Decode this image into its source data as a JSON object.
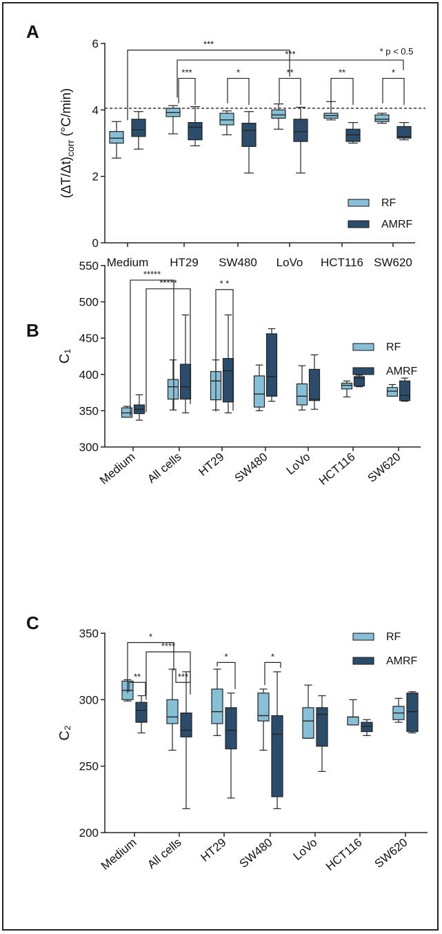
{
  "colors": {
    "rf": "#87bfd6",
    "amrf": "#2b4d6b",
    "axis": "#222222"
  },
  "chart_data": [
    {
      "panel": "A",
      "type": "box",
      "ylabel": "(ΔT/Δt)corr (°C/min)",
      "ylabel_main": "(ΔT/Δt)",
      "ylabel_sub": "corr",
      "ylabel_unit": " (°C/min)",
      "ylim": [
        0,
        6
      ],
      "yticks": [
        "0",
        "2",
        "4",
        "6"
      ],
      "categories": [
        "Medium",
        "HT29",
        "SW480",
        "LoVo",
        "HCT116",
        "SW620"
      ],
      "legend": [
        "RF",
        "AMRF"
      ],
      "note": "* p < 0.5",
      "reference_line": 4.05,
      "boxes": [
        {
          "cat": 0,
          "series": "single",
          "min": 2.55,
          "q1": 3.0,
          "median": 3.15,
          "q3": 3.35,
          "max": 3.65
        },
        {
          "cat": 0,
          "series": "single2",
          "min": 2.82,
          "q1": 3.2,
          "median": 3.4,
          "q3": 3.72,
          "max": 3.95
        },
        {
          "cat": 1,
          "series": "RF",
          "min": 3.28,
          "q1": 3.8,
          "median": 3.92,
          "q3": 4.05,
          "max": 4.13
        },
        {
          "cat": 1,
          "series": "AMRF",
          "min": 2.92,
          "q1": 3.1,
          "median": 3.48,
          "q3": 3.62,
          "max": 4.1
        },
        {
          "cat": 2,
          "series": "RF",
          "min": 3.25,
          "q1": 3.55,
          "median": 3.7,
          "q3": 3.9,
          "max": 3.97
        },
        {
          "cat": 2,
          "series": "AMRF",
          "min": 2.1,
          "q1": 2.9,
          "median": 3.38,
          "q3": 3.6,
          "max": 3.95
        },
        {
          "cat": 3,
          "series": "RF",
          "min": 3.42,
          "q1": 3.75,
          "median": 3.85,
          "q3": 4.0,
          "max": 4.18
        },
        {
          "cat": 3,
          "series": "AMRF",
          "min": 2.1,
          "q1": 3.05,
          "median": 3.35,
          "q3": 3.72,
          "max": 4.08
        },
        {
          "cat": 4,
          "series": "RF",
          "min": 3.7,
          "q1": 3.75,
          "median": 3.83,
          "q3": 3.9,
          "max": 4.25
        },
        {
          "cat": 4,
          "series": "AMRF",
          "min": 3.0,
          "q1": 3.05,
          "median": 3.25,
          "q3": 3.42,
          "max": 3.62
        },
        {
          "cat": 5,
          "series": "RF",
          "min": 3.6,
          "q1": 3.65,
          "median": 3.72,
          "q3": 3.85,
          "max": 3.9
        },
        {
          "cat": 5,
          "series": "AMRF",
          "min": 3.1,
          "q1": 3.15,
          "median": 3.2,
          "q3": 3.5,
          "max": 3.62
        }
      ],
      "brackets": [
        {
          "label": "***",
          "level": 5.8
        },
        {
          "label": "***",
          "level": 5.5
        },
        {
          "label": "***",
          "level": 4.95
        },
        {
          "label": "*",
          "level": 4.95
        },
        {
          "label": "**",
          "level": 4.95
        },
        {
          "label": "**",
          "level": 4.95
        },
        {
          "label": "*",
          "level": 4.95
        }
      ]
    },
    {
      "panel": "B",
      "type": "box",
      "ylabel": "C₁",
      "ylim": [
        300,
        550
      ],
      "yticks": [
        "300",
        "350",
        "400",
        "450",
        "500",
        "550"
      ],
      "categories": [
        "Medium",
        "All cells",
        "HT29",
        "SW480",
        "LoVo",
        "HCT116",
        "SW620"
      ],
      "legend": [
        "RF",
        "AMRF"
      ],
      "boxes": [
        {
          "cat": 0,
          "series": "RF",
          "min": 341,
          "q1": 341,
          "median": 347,
          "q3": 354,
          "max": 356
        },
        {
          "cat": 0,
          "series": "AMRF",
          "min": 337,
          "q1": 346,
          "median": 352,
          "q3": 358,
          "max": 372
        },
        {
          "cat": 1,
          "series": "RF",
          "min": 351,
          "q1": 366,
          "median": 383,
          "q3": 393,
          "max": 420
        },
        {
          "cat": 1,
          "series": "AMRF",
          "min": 347,
          "q1": 366,
          "median": 383,
          "q3": 414,
          "max": 482
        },
        {
          "cat": 2,
          "series": "RF",
          "min": 351,
          "q1": 365,
          "median": 391,
          "q3": 404,
          "max": 420
        },
        {
          "cat": 2,
          "series": "AMRF",
          "min": 347,
          "q1": 362,
          "median": 405,
          "q3": 422,
          "max": 482
        },
        {
          "cat": 3,
          "series": "RF",
          "min": 350,
          "q1": 355,
          "median": 373,
          "q3": 398,
          "max": 413
        },
        {
          "cat": 3,
          "series": "AMRF",
          "min": 363,
          "q1": 370,
          "median": 397,
          "q3": 456,
          "max": 463
        },
        {
          "cat": 4,
          "series": "RF",
          "min": 351,
          "q1": 358,
          "median": 370,
          "q3": 387,
          "max": 412
        },
        {
          "cat": 4,
          "series": "AMRF",
          "min": 352,
          "q1": 364,
          "median": 366,
          "q3": 407,
          "max": 427
        },
        {
          "cat": 5,
          "series": "RF",
          "min": 369,
          "q1": 380,
          "median": 385,
          "q3": 388,
          "max": 391
        },
        {
          "cat": 5,
          "series": "AMRF",
          "min": 383,
          "q1": 384,
          "median": 395,
          "q3": 397,
          "max": 399
        },
        {
          "cat": 6,
          "series": "RF",
          "min": 370,
          "q1": 370,
          "median": 377,
          "q3": 382,
          "max": 386
        },
        {
          "cat": 6,
          "series": "AMRF",
          "min": 363,
          "q1": 364,
          "median": 371,
          "q3": 391,
          "max": 395
        }
      ],
      "brackets": [
        {
          "label": "*****",
          "level": 530
        },
        {
          "label": "*****",
          "level": 518
        },
        {
          "label": "* *",
          "level": 517
        }
      ]
    },
    {
      "panel": "C",
      "type": "box",
      "ylabel": "C₂",
      "ylim": [
        200,
        350
      ],
      "yticks": [
        "200",
        "250",
        "300",
        "350"
      ],
      "categories": [
        "Medium",
        "All cells",
        "HT29",
        "SW480",
        "LoVo",
        "HCT116",
        "SW620"
      ],
      "legend": [
        "RF",
        "AMRF"
      ],
      "boxes": [
        {
          "cat": 0,
          "series": "RF",
          "min": 299,
          "q1": 300,
          "median": 307,
          "q3": 314,
          "max": 315
        },
        {
          "cat": 0,
          "series": "AMRF",
          "min": 275,
          "q1": 283,
          "median": 292,
          "q3": 298,
          "max": 303
        },
        {
          "cat": 1,
          "series": "RF",
          "min": 262,
          "q1": 282,
          "median": 287,
          "q3": 300,
          "max": 323
        },
        {
          "cat": 1,
          "series": "AMRF",
          "min": 218,
          "q1": 272,
          "median": 277,
          "q3": 290,
          "max": 321
        },
        {
          "cat": 2,
          "series": "RF",
          "min": 273,
          "q1": 282,
          "median": 291,
          "q3": 308,
          "max": 323
        },
        {
          "cat": 2,
          "series": "AMRF",
          "min": 226,
          "q1": 263,
          "median": 277,
          "q3": 294,
          "max": 305
        },
        {
          "cat": 3,
          "series": "RF",
          "min": 262,
          "q1": 284,
          "median": 288,
          "q3": 305,
          "max": 308
        },
        {
          "cat": 3,
          "series": "AMRF",
          "min": 218,
          "q1": 227,
          "median": 274,
          "q3": 288,
          "max": 321
        },
        {
          "cat": 4,
          "series": "RF",
          "min": 271,
          "q1": 271,
          "median": 284,
          "q3": 294,
          "max": 311
        },
        {
          "cat": 4,
          "series": "AMRF",
          "min": 246,
          "q1": 265,
          "median": 289,
          "q3": 294,
          "max": 303
        },
        {
          "cat": 5,
          "series": "RF",
          "min": 281,
          "q1": 281,
          "median": 287,
          "q3": 287,
          "max": 300
        },
        {
          "cat": 5,
          "series": "AMRF",
          "min": 273,
          "q1": 276,
          "median": 280,
          "q3": 283,
          "max": 285
        },
        {
          "cat": 6,
          "series": "RF",
          "min": 283,
          "q1": 285,
          "median": 290,
          "q3": 295,
          "max": 301
        },
        {
          "cat": 6,
          "series": "AMRF",
          "min": 275,
          "q1": 276,
          "median": 291,
          "q3": 305,
          "max": 306
        }
      ],
      "brackets": [
        {
          "label": "*",
          "level": 343
        },
        {
          "label": "****",
          "level": 336
        },
        {
          "label": "**",
          "level": 313
        },
        {
          "label": "***",
          "level": 313
        },
        {
          "label": "*",
          "level": 328
        },
        {
          "label": "*",
          "level": 328
        }
      ]
    }
  ]
}
